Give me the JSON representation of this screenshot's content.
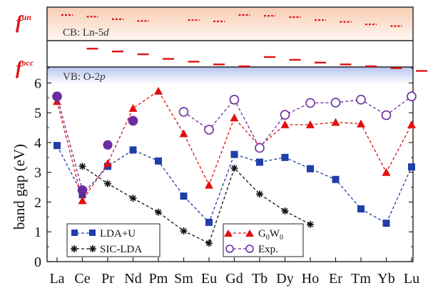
{
  "chart_data": {
    "type": "line",
    "ylabel": "band gap (eV)",
    "ylim": [
      0,
      6.8
    ],
    "yticks": [
      "0",
      "1",
      "2",
      "3",
      "4",
      "5",
      "6"
    ],
    "categories": [
      "La",
      "Ce",
      "Pr",
      "Nd",
      "Pm",
      "Sm",
      "Eu",
      "Gd",
      "Tb",
      "Dy",
      "Ho",
      "Er",
      "Tm",
      "Yb",
      "Lu"
    ],
    "series": [
      {
        "name": "LDA+U",
        "color": "#1f3fa8",
        "marker": "square",
        "line": "dashed",
        "values": [
          3.9,
          2.25,
          3.2,
          3.75,
          3.38,
          2.2,
          1.32,
          3.6,
          3.34,
          3.5,
          3.12,
          2.76,
          1.77,
          1.29,
          3.18
        ]
      },
      {
        "name": "SIC-LDA",
        "color": "#111111",
        "marker": "asterisk",
        "line": "dashed",
        "values": [
          null,
          3.2,
          2.62,
          2.13,
          1.66,
          1.03,
          0.62,
          3.14,
          2.27,
          1.7,
          1.25,
          null,
          null,
          null,
          null
        ]
      },
      {
        "name": "G0W0",
        "label_main": "G",
        "label_sub1": "0",
        "label_mid": "W",
        "label_sub2": "0",
        "color": "#e01010",
        "marker": "triangle",
        "line": "dashed",
        "values": [
          5.38,
          2.05,
          3.3,
          5.15,
          5.73,
          4.3,
          2.57,
          4.83,
          3.87,
          4.6,
          4.6,
          4.68,
          4.63,
          3.0,
          4.6
        ]
      },
      {
        "name": "Exp.",
        "color": "#6b2d9e",
        "marker": "circle-open",
        "line": "dashed",
        "values": [
          5.55,
          2.4,
          null,
          4.73,
          null,
          5.03,
          4.43,
          5.44,
          3.82,
          4.93,
          5.33,
          5.34,
          5.44,
          4.92,
          5.55
        ]
      }
    ],
    "filled_circles": [
      {
        "category": "La",
        "value": 5.55
      },
      {
        "category": "Ce",
        "value": 2.4
      },
      {
        "category": "Pr",
        "value": 3.92
      },
      {
        "category": "Nd",
        "value": 4.73
      }
    ],
    "level_panel": {
      "cb_label_prefix": "CB: Ln-5",
      "cb_label_italic": "d",
      "vb_label_prefix": "VB: O-2",
      "vb_label_italic": "p",
      "f_unocc_main": "f",
      "f_unocc_sup": "un",
      "f_occ_main": "f",
      "f_occ_sup": "occ",
      "unocc_levels": [
        1.0,
        0.8,
        0.5,
        0.3,
        null,
        0.4,
        0.25,
        1.0,
        0.9,
        0.75,
        0.4,
        0.2,
        -0.1,
        -0.3,
        null
      ],
      "occ_levels": [
        null,
        0.9,
        0.6,
        0.3,
        -0.2,
        -0.5,
        -0.8,
        -1.0,
        0.0,
        -0.3,
        -0.6,
        -0.8,
        -1.0,
        -1.2,
        -1.5
      ]
    }
  }
}
